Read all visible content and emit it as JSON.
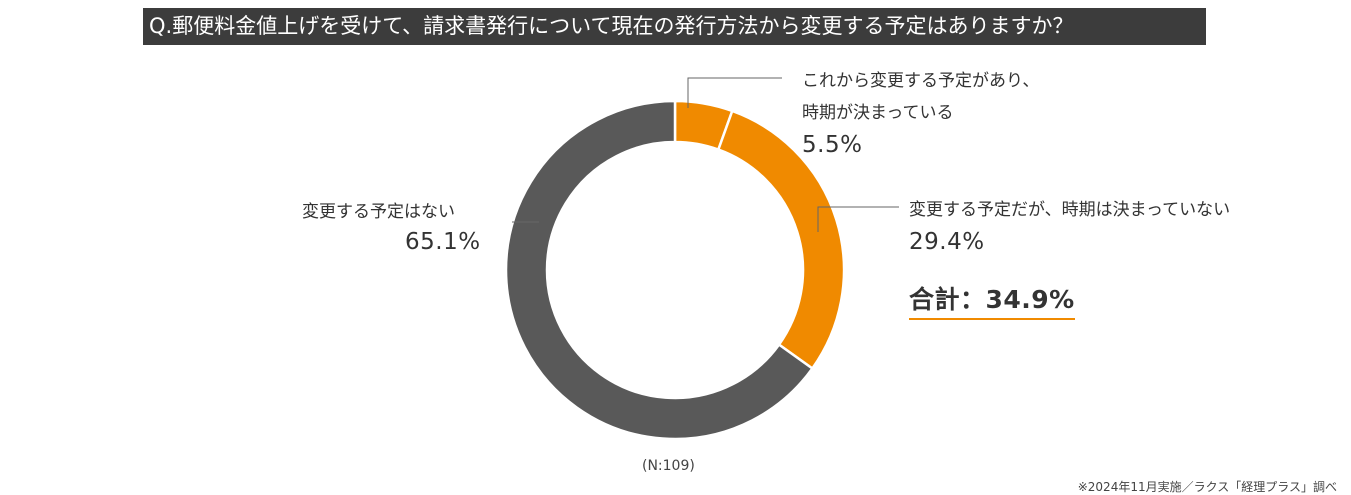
{
  "title": "Q.郵便料金値上げを受けて、請求書発行について現在の発行方法から変更する予定はありますか？",
  "chart_data": {
    "type": "pie",
    "subtype": "donut",
    "slices": [
      {
        "label_line1": "これから変更する予定があり、",
        "label_line2": "時期が決まっている",
        "value": 5.5,
        "value_label": "5.5%",
        "color": "#f08a00"
      },
      {
        "label_line1": "変更する予定だが、時期は決まっていない",
        "label_line2": "",
        "value": 29.4,
        "value_label": "29.4%",
        "color": "#f08a00"
      },
      {
        "label_line1": "変更する予定はない",
        "label_line2": "",
        "value": 65.1,
        "value_label": "65.1%",
        "color": "#595959"
      }
    ],
    "total_label": "合計：34.9%",
    "sample_size": "(N:109)",
    "source_note": "※2024年11月実施／ラクス「経理プラス」調べ"
  }
}
